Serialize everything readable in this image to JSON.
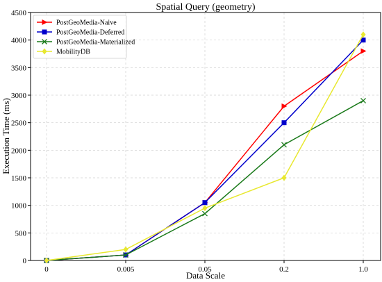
{
  "chart_data": {
    "type": "line",
    "title": "Spatial Query (geometry)",
    "xlabel": "Data Scale",
    "ylabel": "Execution Time (ms)",
    "categories": [
      "0",
      "0.005",
      "0.05",
      "0.2",
      "1.0"
    ],
    "ylim": [
      0,
      4500
    ],
    "yticks": [
      0,
      500,
      1000,
      1500,
      2000,
      2500,
      3000,
      3500,
      4000,
      4500
    ],
    "ytick_labels": [
      "0",
      "500",
      "1000",
      "1500",
      "2000",
      "2500",
      "3000",
      "3500",
      "4000",
      "4500"
    ],
    "grid": true,
    "legend_position": "top-left",
    "series": [
      {
        "name": "PostGeoMedia-Naive",
        "color": "#ff0000",
        "marker": "triangle-right",
        "values": [
          0,
          100,
          1050,
          2800,
          3800
        ]
      },
      {
        "name": "PostGeoMedia-Deferred",
        "color": "#0000cc",
        "marker": "square",
        "values": [
          0,
          100,
          1050,
          2500,
          4000
        ]
      },
      {
        "name": "PostGeoMedia-Materialized",
        "color": "#1a7a1a",
        "marker": "x",
        "values": [
          0,
          100,
          850,
          2100,
          2900
        ]
      },
      {
        "name": "MobilityDB",
        "color": "#e8e830",
        "marker": "diamond",
        "values": [
          0,
          200,
          950,
          1500,
          4100
        ]
      }
    ]
  }
}
